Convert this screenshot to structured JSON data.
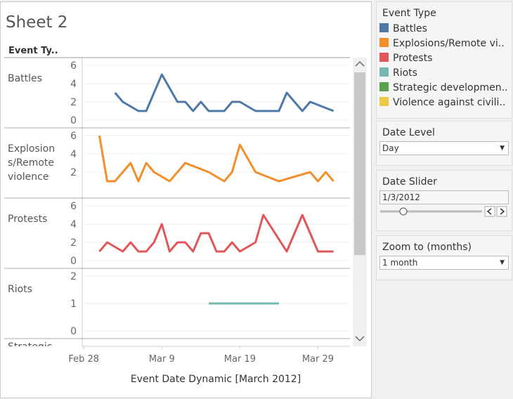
{
  "sheet_title": "Sheet 2",
  "row_header": "Event Ty..",
  "x_axis": {
    "label": "Event Date Dynamic [March 2012]",
    "xlim": [
      -1.2,
      33.1
    ],
    "xticks": [
      {
        "value": -1,
        "label": "Feb 28"
      },
      {
        "value": 9,
        "label": "Mar 9"
      },
      {
        "value": 19,
        "label": "Mar 19"
      },
      {
        "value": 29,
        "label": "Mar 29"
      }
    ]
  },
  "chart_data": [
    {
      "type": "line",
      "title": "Battles",
      "ylim": [
        0,
        6
      ],
      "yticks": [
        0,
        2,
        4,
        6
      ],
      "grid": true,
      "x": [
        3,
        4,
        6,
        7,
        9,
        11,
        12,
        13,
        14,
        15,
        17,
        18,
        19,
        21,
        23,
        24,
        25,
        27,
        28,
        31
      ],
      "series": [
        {
          "color": "#4e79a7",
          "values": [
            3,
            2,
            1,
            1,
            5,
            2,
            2,
            1,
            2,
            1,
            1,
            2,
            2,
            1,
            1,
            1,
            3,
            1,
            2,
            1
          ]
        }
      ]
    },
    {
      "type": "line",
      "title": "Explosions/Remote violence",
      "ylim": [
        0,
        6
      ],
      "yticks": [
        2,
        4,
        6
      ],
      "grid": true,
      "x": [
        1,
        2,
        3,
        5,
        6,
        7,
        8,
        10,
        12,
        15,
        17,
        18,
        19,
        21,
        24,
        28,
        29,
        30,
        31
      ],
      "series": [
        {
          "color": "#f28e2b",
          "values": [
            6,
            1,
            1,
            3,
            1,
            3,
            2,
            1,
            3,
            2,
            1,
            2,
            5,
            2,
            1,
            2,
            1,
            2,
            1
          ]
        }
      ]
    },
    {
      "type": "line",
      "title": "Protests",
      "ylim": [
        0,
        6
      ],
      "yticks": [
        0,
        2,
        4,
        6
      ],
      "grid": true,
      "x": [
        1,
        2,
        4,
        5,
        6,
        7,
        8,
        9,
        10,
        11,
        12,
        13,
        14,
        15,
        16,
        17,
        18,
        19,
        21,
        22,
        25,
        27,
        29,
        31
      ],
      "series": [
        {
          "color": "#e15759",
          "values": [
            1,
            2,
            1,
            2,
            1,
            1,
            2,
            4,
            1,
            2,
            2,
            1,
            3,
            3,
            1,
            1,
            2,
            1,
            2,
            5,
            1,
            5,
            1,
            1
          ]
        }
      ]
    },
    {
      "type": "line",
      "title": "Riots",
      "ylim": [
        0,
        2
      ],
      "yticks": [
        0,
        1,
        2
      ],
      "grid": true,
      "x": [
        15,
        24
      ],
      "series": [
        {
          "color": "#76b7b2",
          "values": [
            1,
            1
          ]
        }
      ]
    },
    {
      "type": "line",
      "title": "Strategic"
    }
  ],
  "legend": {
    "title": "Event Type",
    "items": [
      {
        "label": "Battles",
        "color": "#4e79a7"
      },
      {
        "label": "Explosions/Remote vi..",
        "color": "#f28e2b"
      },
      {
        "label": "Protests",
        "color": "#e15759"
      },
      {
        "label": "Riots",
        "color": "#76b7b2"
      },
      {
        "label": "Strategic developmen..",
        "color": "#59a14f"
      },
      {
        "label": "Violence against civili..",
        "color": "#edc948"
      }
    ]
  },
  "controls": {
    "date_level": {
      "title": "Date Level",
      "value": "Day"
    },
    "date_slider": {
      "title": "Date Slider",
      "value": "1/3/2012"
    },
    "zoom": {
      "title": "Zoom to (months)",
      "value": "1 month"
    }
  }
}
